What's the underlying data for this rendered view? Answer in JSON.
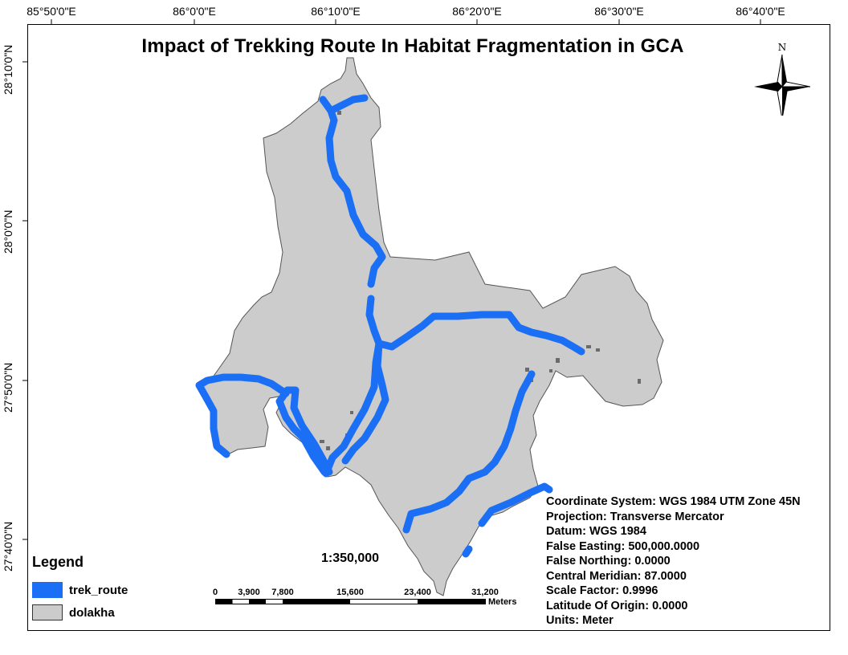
{
  "map": {
    "title": "Impact of Trekking Route In Habitat Fragmentation in GCA",
    "longitude_ticks": [
      "85°50'0\"E",
      "86°0'0\"E",
      "86°10'0\"E",
      "86°20'0\"E",
      "86°30'0\"E",
      "86°40'0\"E"
    ],
    "latitude_ticks": [
      "28°10'0\"N",
      "28°0'0\"N",
      "27°50'0\"N",
      "27°40'0\"N"
    ],
    "north_label": "N",
    "colors": {
      "trek_route": "#1a6ff5",
      "dolakha": "#cccccc",
      "fragment": "#6b6b6b"
    }
  },
  "legend": {
    "title": "Legend",
    "items": [
      {
        "label": "trek_route",
        "color": "#1a6ff5"
      },
      {
        "label": "dolakha",
        "color": "#cccccc"
      }
    ]
  },
  "scale": {
    "ratio": "1:350,000",
    "labels": [
      "0",
      "3,900",
      "7,800",
      "15,600",
      "23,400",
      "31,200"
    ],
    "units": "Meters"
  },
  "projection_info": [
    "Coordinate System: WGS 1984 UTM Zone 45N",
    "Projection: Transverse Mercator",
    "Datum: WGS 1984",
    "False Easting: 500,000.0000",
    "False Northing: 0.0000",
    "Central Meridian: 87.0000",
    "Scale Factor: 0.9996",
    "Latitude Of Origin: 0.0000",
    "Units: Meter"
  ]
}
